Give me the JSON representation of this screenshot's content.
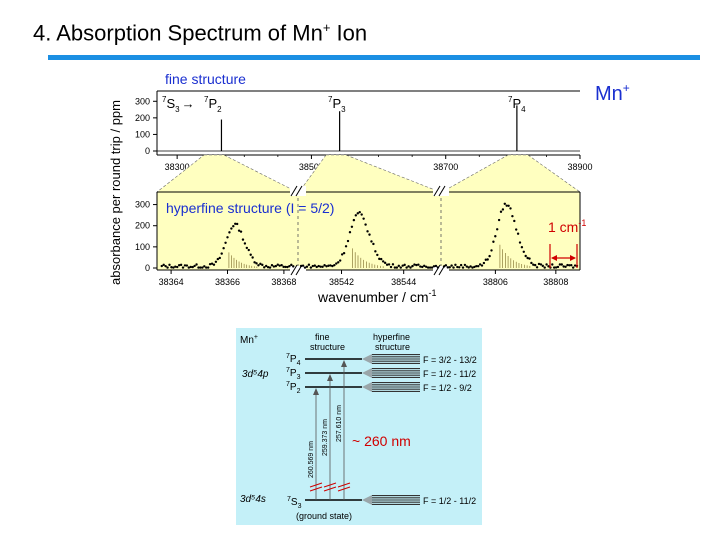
{
  "slide": {
    "title_prefix": "4. Absorption Spectrum of Mn",
    "title_sup": "+",
    "title_suffix": " Ion"
  },
  "spectrum": {
    "ion_label": "Mn",
    "ion_label_sup": "+",
    "fine_structure_label": "fine structure",
    "hyperfine_label": "hyperfine structure (I = 5/2)",
    "ylabel": "absorbance per round trip / ppm",
    "xlabel": "wavenumber / cm",
    "xlabel_sup": "-1",
    "scale_bar_label": "1 cm",
    "scale_bar_sup": "-1",
    "transitions": [
      {
        "lower": "S",
        "lower_sup": "7",
        "lower_sub": "3",
        "arrow": "→"
      },
      {
        "upper": "P",
        "upper_sup": "7",
        "upper_sub": "2"
      },
      {
        "upper": "P",
        "upper_sup": "7",
        "upper_sub": "3"
      },
      {
        "upper": "P",
        "upper_sup": "7",
        "upper_sub": "4"
      }
    ]
  },
  "chart_data": [
    {
      "type": "line",
      "title": "fine structure",
      "xlim": [
        38270,
        38900
      ],
      "ylim": [
        0,
        350
      ],
      "xticks": [
        "38300",
        "38500",
        "38700",
        "38900"
      ],
      "yticks": [
        "0",
        "100",
        "200",
        "300"
      ],
      "peaks": [
        {
          "x": 38366,
          "y": 190,
          "label": "7P2"
        },
        {
          "x": 38542,
          "y": 240,
          "label": "7P3"
        },
        {
          "x": 38806,
          "y": 275,
          "label": "7P4"
        }
      ]
    },
    {
      "type": "scatter",
      "title": "hyperfine structure (I = 5/2)",
      "ylim": [
        0,
        350
      ],
      "yticks": [
        "0",
        "100",
        "200",
        "300"
      ],
      "panels": [
        {
          "xlim": [
            38363.5,
            38368.5
          ],
          "xticks": [
            "38364",
            "38366",
            "38368"
          ],
          "center": 38366.2,
          "peak": 195
        },
        {
          "xlim": [
            38540.6,
            38545.2
          ],
          "xticks": [
            "38542",
            "38544"
          ],
          "center": 38542.5,
          "peak": 245
        },
        {
          "xlim": [
            38804.2,
            38808.8
          ],
          "xticks": [
            "38806",
            "38808"
          ],
          "center": 38806.3,
          "peak": 290
        }
      ]
    }
  ],
  "diagram": {
    "ion_label": "Mn",
    "ion_label_sup": "+",
    "col_fine": [
      "fine",
      "structure"
    ],
    "col_hyperfine": [
      "hyperfine",
      "structure"
    ],
    "config_upper": "3d⁵4p",
    "config_lower": "3d⁵4s",
    "ground_state": "(ground state)",
    "approx_wavelength": "~ 260 nm",
    "levels": [
      {
        "term": "P",
        "sup": "7",
        "sub": "4",
        "F": "F = 3/2 - 13/2"
      },
      {
        "term": "P",
        "sup": "7",
        "sub": "3",
        "F": "F = 1/2 - 11/2"
      },
      {
        "term": "P",
        "sup": "7",
        "sub": "2",
        "F": "F = 1/2 - 9/2"
      },
      {
        "term": "S",
        "sup": "7",
        "sub": "3",
        "F": "F = 1/2 - 11/2"
      }
    ],
    "wavelengths": [
      "260.569 nm",
      "259.373 nm",
      "257.610 nm"
    ]
  },
  "colors": {
    "rule": "#1b8fe3",
    "panel_fill": "#ffffc0",
    "diagram_bg": "#c4f0f8",
    "blue_text": "#1a2fd0",
    "red_text": "#d00000"
  }
}
